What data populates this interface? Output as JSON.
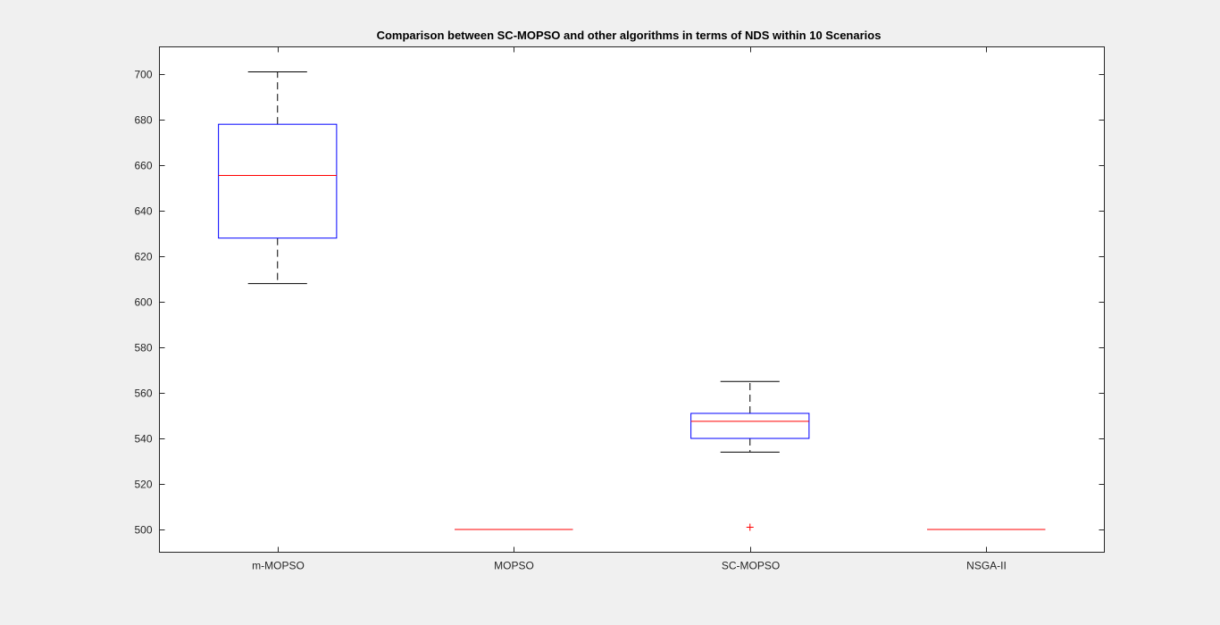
{
  "chart_data": {
    "type": "boxplot",
    "title": "Comparison between SC-MOPSO and other algorithms in terms of NDS within 10 Scenarios",
    "xlabel": "",
    "ylabel": "",
    "categories": [
      "m-MOPSO",
      "MOPSO",
      "SC-MOPSO",
      "NSGA-II"
    ],
    "ylim": [
      490,
      712
    ],
    "yticks": [
      500,
      520,
      540,
      560,
      580,
      600,
      620,
      640,
      660,
      680,
      700
    ],
    "grid": false,
    "boxes": [
      {
        "name": "m-MOPSO",
        "whisker_low": 608,
        "q1": 628,
        "median": 655.5,
        "q3": 678,
        "whisker_high": 701,
        "outliers": []
      },
      {
        "name": "MOPSO",
        "whisker_low": 500,
        "q1": 500,
        "median": 500,
        "q3": 500,
        "whisker_high": 500,
        "outliers": []
      },
      {
        "name": "SC-MOPSO",
        "whisker_low": 534,
        "q1": 540,
        "median": 547.5,
        "q3": 551,
        "whisker_high": 565,
        "outliers": [
          501
        ]
      },
      {
        "name": "NSGA-II",
        "whisker_low": 500,
        "q1": 500,
        "median": 500,
        "q3": 500,
        "whisker_high": 500,
        "outliers": []
      }
    ],
    "colors": {
      "box": "#0000ff",
      "median": "#ff0000",
      "whisker": "#000000",
      "outlier": "#ff0000",
      "axes": "#262626",
      "axes_background": "#ffffff"
    }
  }
}
